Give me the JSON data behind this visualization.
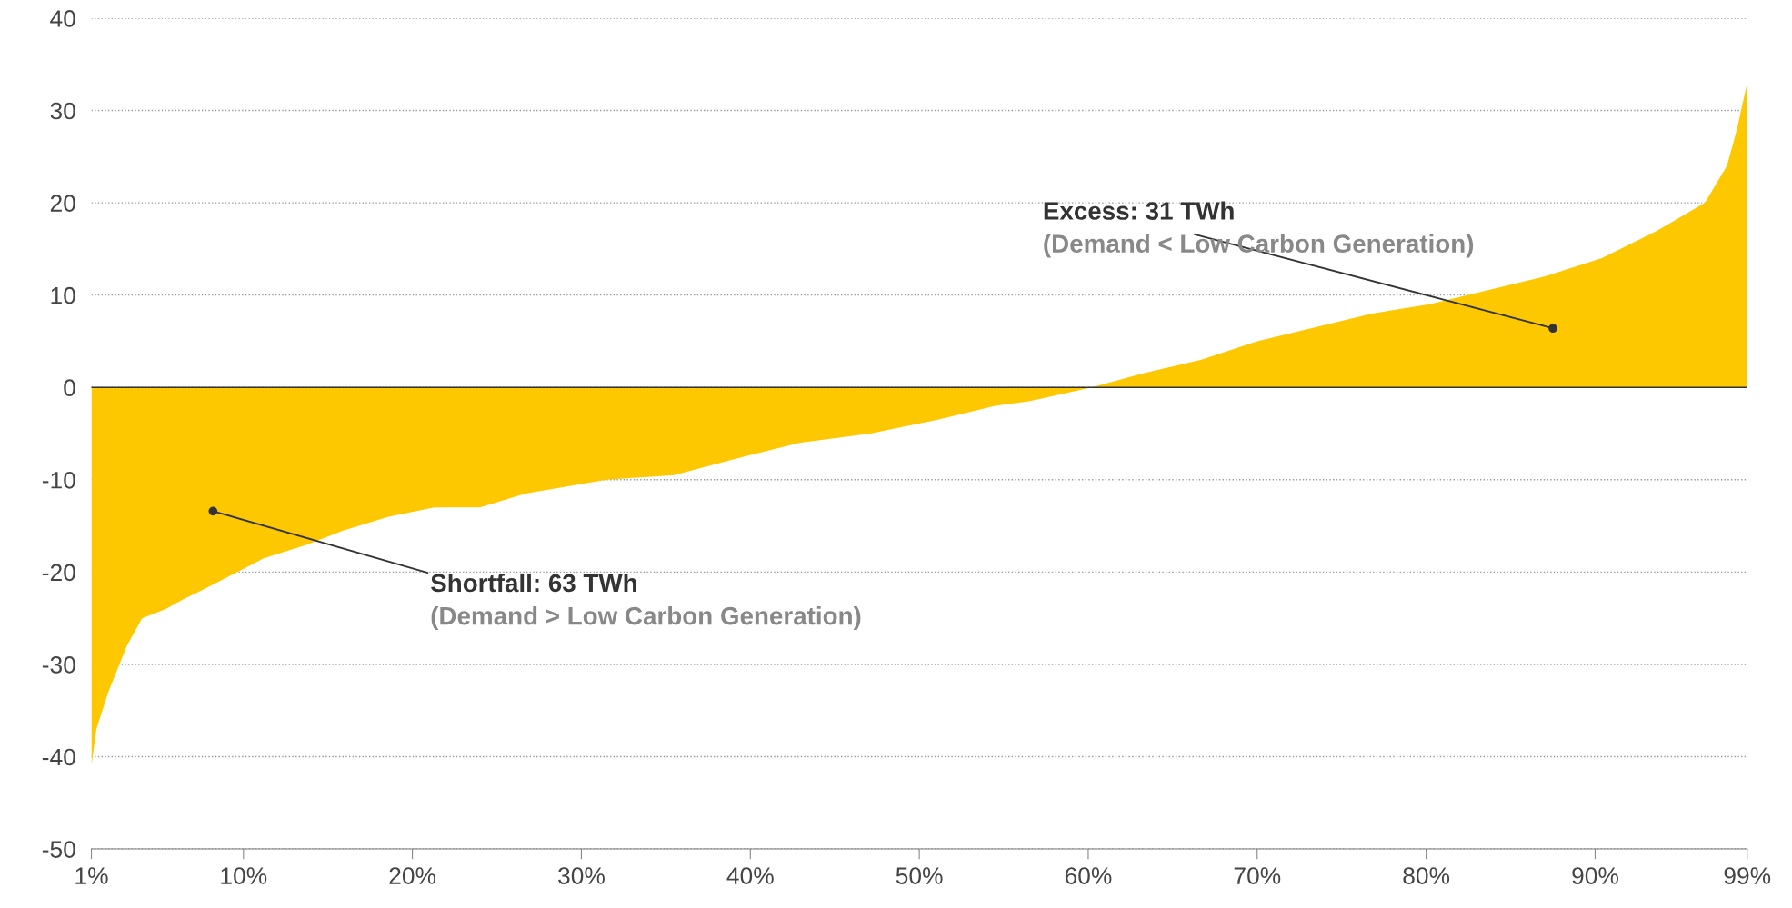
{
  "chart_data": {
    "type": "area",
    "color": "#fdc800",
    "x": [
      1,
      1.3,
      2.0,
      3.1,
      4.0,
      5.4,
      6.4,
      7.5,
      9.1,
      11.2,
      13.8,
      15.9,
      18.6,
      21.3,
      24.0,
      26.7,
      31.5,
      35.5,
      39.6,
      42.9,
      47.1,
      51.1,
      54.5,
      56.5,
      60.2,
      63.2,
      66.7,
      70.0,
      73.4,
      76.8,
      80.2,
      83.6,
      87.0,
      90.4,
      93.7,
      96.5,
      97.8,
      98.4,
      99
    ],
    "values": [
      -41,
      -37,
      -33,
      -28,
      -25,
      -24,
      -23,
      -22,
      -20.5,
      -18.5,
      -17,
      -15.5,
      -14,
      -13,
      -13,
      -11.5,
      -10,
      -9.5,
      -7.5,
      -6,
      -5,
      -3.5,
      -2,
      -1.5,
      0,
      1.5,
      3,
      5,
      6.5,
      8,
      9,
      10.5,
      12,
      14,
      17,
      20,
      24,
      28,
      33
    ],
    "xlim": [
      1,
      99
    ],
    "xticks": [
      {
        "value": 1,
        "label": "1%"
      },
      {
        "value": 10,
        "label": "10%"
      },
      {
        "value": 20,
        "label": "20%"
      },
      {
        "value": 30,
        "label": "30%"
      },
      {
        "value": 40,
        "label": "40%"
      },
      {
        "value": 50,
        "label": "50%"
      },
      {
        "value": 60,
        "label": "60%"
      },
      {
        "value": 70,
        "label": "70%"
      },
      {
        "value": 80,
        "label": "80%"
      },
      {
        "value": 90,
        "label": "90%"
      },
      {
        "value": 99,
        "label": "99%"
      }
    ],
    "ylim": [
      -50,
      40
    ],
    "yticks": [
      -50,
      -40,
      -30,
      -20,
      -10,
      0,
      10,
      20,
      30,
      40
    ],
    "grid": "y",
    "ref_lines": [
      {
        "axis": "y",
        "value": 0,
        "color": "#333333"
      }
    ],
    "annotations": [
      {
        "text": "Shortfall: 63 TWh",
        "x": 8.2,
        "y": -13.4
      },
      "(Demand > Low Carbon Generation)",
      {
        "text": "Excess: 31 TWh",
        "x": 87.5,
        "y": 6.4
      },
      "(Demand < Low Carbon Generation)"
    ]
  }
}
